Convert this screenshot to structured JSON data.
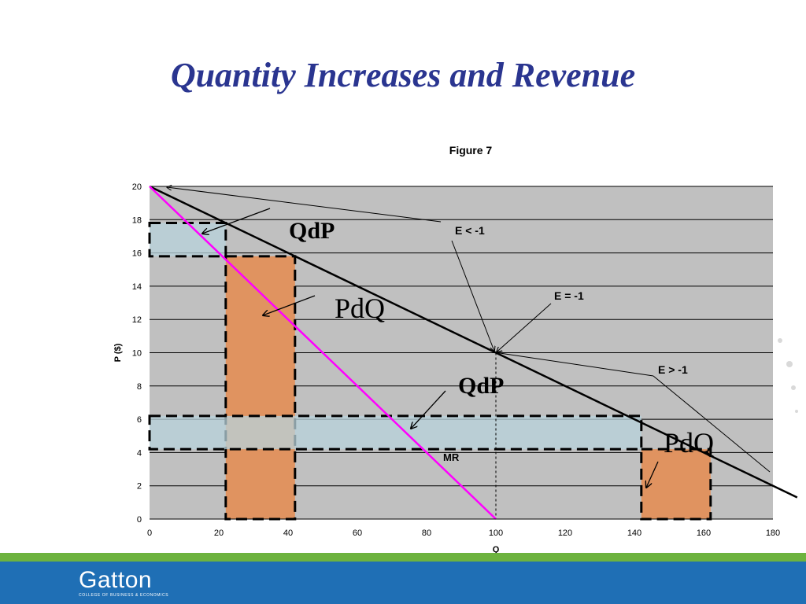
{
  "slide": {
    "title": "Quantity Increases and Revenue",
    "logo_text": "Gatton",
    "logo_subtext": "COLLEGE OF BUSINESS & ECONOMICS"
  },
  "colors": {
    "title": "#2a3590",
    "plot_bg": "#c0c0c0",
    "demand": "#000000",
    "mr": "#ff00ff",
    "qdp_fill": "#b8d3dc",
    "pdq_fill": "#e09360",
    "band_green": "#6db33f",
    "band_blue": "#1f6fb5"
  },
  "chart_data": {
    "type": "line",
    "title": "Figure 7",
    "xlabel": "Q",
    "ylabel": "P ($)",
    "xlim": [
      0,
      180
    ],
    "ylim": [
      0,
      20
    ],
    "x_ticks": [
      0,
      20,
      40,
      60,
      80,
      100,
      120,
      140,
      160,
      180
    ],
    "y_ticks": [
      0,
      2,
      4,
      6,
      8,
      10,
      12,
      14,
      16,
      18,
      20
    ],
    "grid": "horizontal",
    "series": [
      {
        "role": "demand",
        "x": [
          0,
          187
        ],
        "y": [
          20,
          1.3
        ]
      },
      {
        "name": "MR",
        "x": [
          0,
          100
        ],
        "y": [
          20,
          0
        ]
      }
    ],
    "rectangles": [
      {
        "label": "QdP",
        "kind": "QdP",
        "x0": 0,
        "x1": 22,
        "y0": 15.8,
        "y1": 17.8
      },
      {
        "label": "PdQ",
        "kind": "PdQ",
        "x0": 22,
        "x1": 42,
        "y0": 0,
        "y1": 15.8
      },
      {
        "label": "QdP",
        "kind": "QdP",
        "x0": 0,
        "x1": 142,
        "y0": 4.2,
        "y1": 6.2
      },
      {
        "label": "PdQ",
        "kind": "PdQ",
        "x0": 142,
        "x1": 162,
        "y0": 0,
        "y1": 4.2
      }
    ],
    "annotations": [
      "E < -1",
      "E = -1",
      "E > -1"
    ],
    "unit_elastic_point": {
      "x": 100,
      "y": 10
    }
  }
}
